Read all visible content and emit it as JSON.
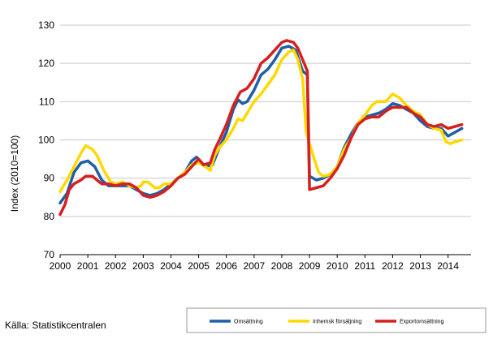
{
  "chart_data": {
    "type": "line",
    "ylabel": "Index (2010=100)",
    "xlabel": "",
    "ylim": [
      70,
      130
    ],
    "xlim": [
      2000,
      2014.83
    ],
    "yticks": [
      70,
      80,
      90,
      100,
      110,
      120,
      130
    ],
    "xticks": [
      "2000",
      "2001",
      "2002",
      "2003",
      "2004",
      "2005",
      "2006",
      "2007",
      "2008",
      "2009",
      "2010",
      "2011",
      "2012",
      "2013",
      "2014"
    ],
    "grid": "horizontal",
    "legend_position": "bottom-right",
    "series": [
      {
        "name": "Omsättning",
        "color": "#1f5fa5",
        "points": [
          [
            2000.0,
            83.5
          ],
          [
            2000.25,
            86
          ],
          [
            2000.5,
            91.5
          ],
          [
            2000.75,
            94
          ],
          [
            2001.0,
            94.5
          ],
          [
            2001.25,
            93
          ],
          [
            2001.5,
            89.5
          ],
          [
            2001.75,
            88
          ],
          [
            2002.0,
            88
          ],
          [
            2002.25,
            88
          ],
          [
            2002.5,
            88
          ],
          [
            2002.75,
            87
          ],
          [
            2003.0,
            86
          ],
          [
            2003.25,
            85.5
          ],
          [
            2003.5,
            86
          ],
          [
            2003.75,
            87
          ],
          [
            2004.0,
            88.5
          ],
          [
            2004.25,
            90
          ],
          [
            2004.5,
            91.5
          ],
          [
            2004.75,
            94.5
          ],
          [
            2004.92,
            95.5
          ],
          [
            2005.25,
            93
          ],
          [
            2005.5,
            93.5
          ],
          [
            2005.75,
            98
          ],
          [
            2006.0,
            102
          ],
          [
            2006.25,
            108
          ],
          [
            2006.42,
            110.5
          ],
          [
            2006.58,
            109.5
          ],
          [
            2006.75,
            110
          ],
          [
            2007.0,
            113
          ],
          [
            2007.25,
            117
          ],
          [
            2007.5,
            118.5
          ],
          [
            2007.75,
            121
          ],
          [
            2008.0,
            124
          ],
          [
            2008.25,
            124.5
          ],
          [
            2008.5,
            123.5
          ],
          [
            2008.75,
            118
          ],
          [
            2008.92,
            117
          ],
          [
            2009.0,
            90.5
          ],
          [
            2009.25,
            89.5
          ],
          [
            2009.5,
            90
          ],
          [
            2009.75,
            91
          ],
          [
            2010.0,
            93
          ],
          [
            2010.25,
            98
          ],
          [
            2010.5,
            101.5
          ],
          [
            2010.75,
            104.5
          ],
          [
            2011.0,
            106
          ],
          [
            2011.25,
            106.5
          ],
          [
            2011.5,
            107
          ],
          [
            2011.75,
            108
          ],
          [
            2012.0,
            109.5
          ],
          [
            2012.25,
            109
          ],
          [
            2012.5,
            108
          ],
          [
            2012.75,
            107
          ],
          [
            2013.0,
            105
          ],
          [
            2013.25,
            103.5
          ],
          [
            2013.5,
            103
          ],
          [
            2013.75,
            103
          ],
          [
            2014.0,
            101
          ],
          [
            2014.25,
            102
          ],
          [
            2014.5,
            103
          ]
        ]
      },
      {
        "name": "Inhemsk försäljning",
        "color": "#ffd800",
        "points": [
          [
            2000.0,
            86.5
          ],
          [
            2000.25,
            89.5
          ],
          [
            2000.5,
            93
          ],
          [
            2000.75,
            96.5
          ],
          [
            2000.92,
            98.5
          ],
          [
            2001.17,
            97.5
          ],
          [
            2001.33,
            96
          ],
          [
            2001.58,
            92
          ],
          [
            2001.83,
            89
          ],
          [
            2002.0,
            88.5
          ],
          [
            2002.25,
            89
          ],
          [
            2002.5,
            88
          ],
          [
            2002.75,
            87.5
          ],
          [
            2002.92,
            88
          ],
          [
            2003.0,
            89
          ],
          [
            2003.17,
            89
          ],
          [
            2003.42,
            87.5
          ],
          [
            2003.58,
            87.5
          ],
          [
            2003.75,
            88.5
          ],
          [
            2004.0,
            88.5
          ],
          [
            2004.25,
            90
          ],
          [
            2004.5,
            91.5
          ],
          [
            2004.75,
            93.5
          ],
          [
            2005.0,
            94
          ],
          [
            2005.25,
            93
          ],
          [
            2005.42,
            92
          ],
          [
            2005.58,
            96
          ],
          [
            2005.75,
            98
          ],
          [
            2006.0,
            100
          ],
          [
            2006.25,
            103
          ],
          [
            2006.42,
            105.5
          ],
          [
            2006.58,
            105
          ],
          [
            2006.75,
            107
          ],
          [
            2007.0,
            110
          ],
          [
            2007.25,
            112
          ],
          [
            2007.5,
            114.5
          ],
          [
            2007.75,
            117
          ],
          [
            2008.0,
            121
          ],
          [
            2008.25,
            123
          ],
          [
            2008.42,
            123.5
          ],
          [
            2008.58,
            121
          ],
          [
            2008.75,
            116
          ],
          [
            2008.88,
            102
          ],
          [
            2009.0,
            99
          ],
          [
            2009.17,
            95
          ],
          [
            2009.33,
            91.5
          ],
          [
            2009.5,
            90.5
          ],
          [
            2009.75,
            91
          ],
          [
            2010.0,
            93
          ],
          [
            2010.25,
            97.5
          ],
          [
            2010.5,
            100.5
          ],
          [
            2010.75,
            104.5
          ],
          [
            2011.0,
            106.5
          ],
          [
            2011.25,
            109
          ],
          [
            2011.42,
            110
          ],
          [
            2011.58,
            110
          ],
          [
            2011.75,
            110
          ],
          [
            2012.0,
            112
          ],
          [
            2012.25,
            111
          ],
          [
            2012.5,
            109
          ],
          [
            2012.75,
            107.5
          ],
          [
            2013.0,
            106.5
          ],
          [
            2013.25,
            104
          ],
          [
            2013.5,
            103
          ],
          [
            2013.75,
            102.5
          ],
          [
            2013.92,
            99.5
          ],
          [
            2014.08,
            99
          ],
          [
            2014.25,
            99.5
          ],
          [
            2014.5,
            100
          ]
        ]
      },
      {
        "name": "Exportomsättning",
        "color": "#d62020",
        "points": [
          [
            2000.0,
            80.5
          ],
          [
            2000.17,
            83
          ],
          [
            2000.33,
            87
          ],
          [
            2000.5,
            88.5
          ],
          [
            2000.75,
            89.5
          ],
          [
            2000.92,
            90.5
          ],
          [
            2001.17,
            90.5
          ],
          [
            2001.33,
            89.5
          ],
          [
            2001.5,
            88.5
          ],
          [
            2001.75,
            88.5
          ],
          [
            2002.0,
            88
          ],
          [
            2002.25,
            88.5
          ],
          [
            2002.5,
            88.5
          ],
          [
            2002.75,
            87.5
          ],
          [
            2003.0,
            85.5
          ],
          [
            2003.25,
            85
          ],
          [
            2003.5,
            85.5
          ],
          [
            2003.75,
            86.5
          ],
          [
            2004.0,
            88
          ],
          [
            2004.25,
            90
          ],
          [
            2004.5,
            91
          ],
          [
            2004.75,
            93
          ],
          [
            2005.0,
            95
          ],
          [
            2005.17,
            93.5
          ],
          [
            2005.42,
            94
          ],
          [
            2005.58,
            97.5
          ],
          [
            2005.75,
            100
          ],
          [
            2006.0,
            104
          ],
          [
            2006.25,
            109
          ],
          [
            2006.5,
            112.5
          ],
          [
            2006.75,
            113.5
          ],
          [
            2007.0,
            116
          ],
          [
            2007.25,
            120
          ],
          [
            2007.5,
            121.5
          ],
          [
            2007.75,
            123.5
          ],
          [
            2008.0,
            125.5
          ],
          [
            2008.17,
            126
          ],
          [
            2008.42,
            125.5
          ],
          [
            2008.58,
            124
          ],
          [
            2008.75,
            121
          ],
          [
            2008.92,
            118
          ],
          [
            2009.0,
            87
          ],
          [
            2009.25,
            87.5
          ],
          [
            2009.5,
            88
          ],
          [
            2009.75,
            90
          ],
          [
            2010.0,
            92.5
          ],
          [
            2010.25,
            96
          ],
          [
            2010.5,
            100.5
          ],
          [
            2010.75,
            104
          ],
          [
            2011.0,
            105.5
          ],
          [
            2011.25,
            106
          ],
          [
            2011.5,
            106
          ],
          [
            2011.75,
            107.5
          ],
          [
            2012.0,
            108.5
          ],
          [
            2012.25,
            108.5
          ],
          [
            2012.5,
            108.5
          ],
          [
            2012.75,
            107
          ],
          [
            2013.0,
            106
          ],
          [
            2013.25,
            104
          ],
          [
            2013.5,
            103.5
          ],
          [
            2013.75,
            104
          ],
          [
            2014.0,
            103
          ],
          [
            2014.25,
            103.5
          ],
          [
            2014.5,
            104
          ]
        ]
      }
    ]
  },
  "source": "Källa: Statistikcentralen"
}
